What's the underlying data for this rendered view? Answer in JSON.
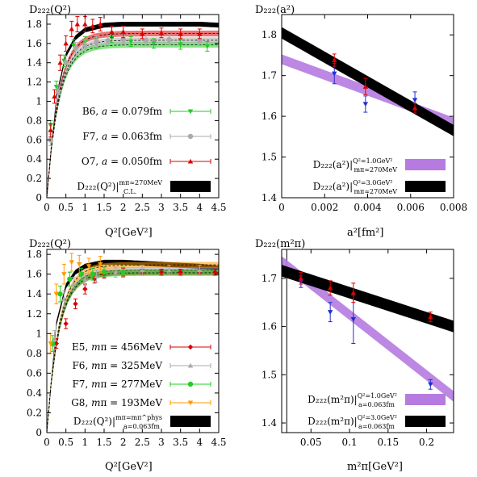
{
  "chart_data": [
    {
      "type": "line",
      "ylabel": "D_222(Q^2)",
      "xlabel": "Q^2[GeV^2]",
      "xlim": [
        0,
        4.5
      ],
      "ylim": [
        0,
        1.9
      ],
      "xticks": [
        "0",
        "0.5",
        "1",
        "1.5",
        "2",
        "2.5",
        "3",
        "3.5",
        "4",
        "4.5"
      ],
      "xtick_values": [
        0,
        0.5,
        1,
        1.5,
        2,
        2.5,
        3,
        3.5,
        4,
        4.5
      ],
      "yticks": [
        "0",
        "0.2",
        "0.4",
        "0.6",
        "0.8",
        "1",
        "1.2",
        "1.4",
        "1.6",
        "1.8"
      ],
      "ytick_values": [
        0,
        0.2,
        0.4,
        0.6,
        0.8,
        1,
        1.2,
        1.4,
        1.6,
        1.8
      ],
      "legend_position": "bottom-right",
      "series": [
        {
          "name": "B6, a = 0.079fm",
          "color": "#22cc22",
          "marker": "triangle-down",
          "x": [
            0.1,
            0.25,
            0.45,
            0.7,
            1.0,
            1.3,
            1.7,
            2.2,
            2.8,
            3.5,
            4.2
          ],
          "y": [
            0.75,
            1.15,
            1.42,
            1.58,
            1.62,
            1.6,
            1.66,
            1.62,
            1.6,
            1.59,
            1.57
          ],
          "err": [
            0.05,
            0.06,
            0.06,
            0.06,
            0.05,
            0.05,
            0.05,
            0.05,
            0.05,
            0.05,
            0.05
          ]
        },
        {
          "name": "F7, a = 0.063fm",
          "color": "#aaaaaa",
          "marker": "circle",
          "x": [
            0.1,
            0.3,
            0.5,
            0.75,
            1.0,
            1.3,
            1.6,
            2.0,
            2.6,
            3.2,
            4.0
          ],
          "y": [
            0.6,
            1.1,
            1.4,
            1.55,
            1.58,
            1.62,
            1.63,
            1.64,
            1.63,
            1.64,
            1.63
          ],
          "err": [
            0.06,
            0.07,
            0.07,
            0.06,
            0.06,
            0.06,
            0.05,
            0.05,
            0.05,
            0.05,
            0.05
          ]
        },
        {
          "name": "O7, a = 0.050fm",
          "color": "#dd0000",
          "marker": "triangle-up",
          "x": [
            0.1,
            0.2,
            0.35,
            0.5,
            0.65,
            0.8,
            1.0,
            1.2,
            1.4,
            1.7,
            2.0,
            2.5,
            3.0,
            3.5,
            4.0
          ],
          "y": [
            0.7,
            1.05,
            1.4,
            1.6,
            1.75,
            1.8,
            1.8,
            1.78,
            1.8,
            1.72,
            1.72,
            1.7,
            1.71,
            1.7,
            1.7
          ],
          "err": [
            0.07,
            0.07,
            0.08,
            0.08,
            0.08,
            0.08,
            0.08,
            0.07,
            0.07,
            0.06,
            0.06,
            0.05,
            0.05,
            0.05,
            0.05
          ]
        },
        {
          "name": "D_222(Q^2)|_{C.L.}^{m_π≈270MeV}",
          "color": "#000000",
          "marker": "band",
          "x": [
            0,
            0.25,
            0.5,
            0.75,
            1,
            1.5,
            2,
            2.5,
            3,
            3.5,
            4,
            4.5
          ],
          "y": [
            0,
            1.05,
            1.48,
            1.66,
            1.74,
            1.79,
            1.8,
            1.8,
            1.8,
            1.8,
            1.8,
            1.79
          ]
        }
      ],
      "legend": [
        {
          "label": "B6, ",
          "italic": "a",
          "rest": " = 0.079fm"
        },
        {
          "label": "F7, ",
          "italic": "a",
          "rest": " = 0.063fm"
        },
        {
          "label": "O7, ",
          "italic": "a",
          "rest": " = 0.050fm"
        },
        {
          "label": "D₂₂₂(Q²)|",
          "sup": "mπ≈270MeV",
          "sub": "C.L."
        }
      ]
    },
    {
      "type": "line",
      "ylabel": "D_222(a^2)",
      "xlabel": "a^2[fm^2]",
      "xlim": [
        0,
        0.008
      ],
      "ylim": [
        1.4,
        1.85
      ],
      "xticks": [
        "0",
        "0.002",
        "0.004",
        "0.006",
        "0.008"
      ],
      "xtick_values": [
        0,
        0.002,
        0.004,
        0.006,
        0.008
      ],
      "yticks": [
        "1.4",
        "1.5",
        "1.6",
        "1.7",
        "1.8"
      ],
      "ytick_values": [
        1.4,
        1.5,
        1.6,
        1.7,
        1.8
      ],
      "legend_position": "bottom-right",
      "series": [
        {
          "name": "D_222(a^2)|^{Q^2=1.0GeV^2}_{m_π≈270MeV}",
          "color": "#b57be0",
          "marker": "band",
          "x": [
            0,
            0.008
          ],
          "y": [
            1.74,
            1.585
          ],
          "halfwidth": 0.012
        },
        {
          "name": "D_222(a^2)|^{Q^2=3.0GeV^2}_{m_π≈270MeV}",
          "color": "#000000",
          "marker": "band",
          "x": [
            0,
            0.008
          ],
          "y": [
            1.805,
            1.565
          ],
          "halfwidth": 0.014
        },
        {
          "name": "points-Q1",
          "color": "#1f2fd0",
          "marker": "triangle-down",
          "x": [
            0.00245,
            0.0039,
            0.0062
          ],
          "y": [
            1.705,
            1.63,
            1.64
          ],
          "err": [
            0.025,
            0.02,
            0.02
          ]
        },
        {
          "name": "points-Q3",
          "color": "#dd0000",
          "marker": "triangle-up",
          "x": [
            0.00245,
            0.0039,
            0.0062
          ],
          "y": [
            1.738,
            1.673,
            1.62
          ],
          "err": [
            0.015,
            0.02,
            0.012
          ]
        }
      ],
      "legend": [
        {
          "label": "D₂₂₂(a²)|",
          "sup": "Q²=1.0GeV²",
          "sub": "mπ≈270MeV"
        },
        {
          "label": "D₂₂₂(a²)|",
          "sup": "Q²=3.0GeV²",
          "sub": "mπ≈270MeV"
        }
      ]
    },
    {
      "type": "line",
      "ylabel": "D_222(Q^2)",
      "xlabel": "Q^2[GeV^2]",
      "xlim": [
        0,
        4.5
      ],
      "ylim": [
        0,
        1.85
      ],
      "xticks": [
        "0",
        "0.5",
        "1",
        "1.5",
        "2",
        "2.5",
        "3",
        "3.5",
        "4",
        "4.5"
      ],
      "xtick_values": [
        0,
        0.5,
        1,
        1.5,
        2,
        2.5,
        3,
        3.5,
        4,
        4.5
      ],
      "yticks": [
        "0",
        "0.2",
        "0.4",
        "0.6",
        "0.8",
        "1",
        "1.2",
        "1.4",
        "1.6",
        "1.8"
      ],
      "ytick_values": [
        0,
        0.2,
        0.4,
        0.6,
        0.8,
        1,
        1.2,
        1.4,
        1.6,
        1.8
      ],
      "legend_position": "bottom-right",
      "series": [
        {
          "name": "E5, m_π = 456MeV",
          "color": "#dd0000",
          "marker": "diamond",
          "x": [
            0.25,
            0.5,
            0.75,
            1.0,
            1.25,
            1.5,
            2.0,
            2.5,
            3.0,
            3.5,
            4.0,
            4.4
          ],
          "y": [
            0.9,
            1.1,
            1.3,
            1.45,
            1.55,
            1.6,
            1.62,
            1.62,
            1.62,
            1.62,
            1.62,
            1.62
          ],
          "err": [
            0.05,
            0.05,
            0.05,
            0.05,
            0.04,
            0.04,
            0.04,
            0.03,
            0.03,
            0.03,
            0.03,
            0.03
          ]
        },
        {
          "name": "F6, m_π = 325MeV",
          "color": "#aaaaaa",
          "marker": "triangle-up",
          "x": [
            0.2,
            0.45,
            0.7,
            1.0,
            1.3,
            1.8,
            2.5,
            3.2,
            4.0
          ],
          "y": [
            0.95,
            1.35,
            1.5,
            1.55,
            1.58,
            1.62,
            1.64,
            1.64,
            1.64
          ],
          "err": [
            0.08,
            0.08,
            0.07,
            0.06,
            0.06,
            0.05,
            0.05,
            0.05,
            0.05
          ]
        },
        {
          "name": "F7, m_π = 277MeV",
          "color": "#22cc22",
          "marker": "circle",
          "x": [
            0.15,
            0.35,
            0.6,
            0.9,
            1.2,
            1.5,
            2.0
          ],
          "y": [
            0.9,
            1.4,
            1.55,
            1.6,
            1.6,
            1.62,
            1.62
          ],
          "err": [
            0.08,
            0.08,
            0.07,
            0.06,
            0.06,
            0.05,
            0.05
          ]
        },
        {
          "name": "G8, m_π = 193MeV",
          "color": "#ff9900",
          "marker": "triangle-down",
          "x": [
            0.1,
            0.25,
            0.45,
            0.65,
            0.85,
            1.1,
            1.4
          ],
          "y": [
            0.9,
            1.4,
            1.6,
            1.72,
            1.7,
            1.68,
            1.7
          ],
          "err": [
            0.1,
            0.1,
            0.1,
            0.09,
            0.09,
            0.08,
            0.08
          ]
        },
        {
          "name": "D_222(Q^2)|^{m_π=m_π^phys}_{a=0.063fm}",
          "color": "#000000",
          "marker": "band",
          "x": [
            0,
            0.25,
            0.5,
            0.75,
            1,
            1.5,
            2,
            2.5,
            3,
            3.5,
            4,
            4.5
          ],
          "y": [
            0,
            1.1,
            1.48,
            1.62,
            1.68,
            1.72,
            1.72,
            1.71,
            1.7,
            1.69,
            1.68,
            1.66
          ]
        }
      ],
      "legend": [
        {
          "label": "E5, ",
          "italic": "m",
          "rest": "π = 456MeV"
        },
        {
          "label": "F6, ",
          "italic": "m",
          "rest": "π = 325MeV"
        },
        {
          "label": "F7, ",
          "italic": "m",
          "rest": "π = 277MeV"
        },
        {
          "label": "G8, ",
          "italic": "m",
          "rest": "π = 193MeV"
        },
        {
          "label": "D₂₂₂(Q²)|",
          "sup": "mπ=mπ^phys",
          "sub": "a=0.063fm"
        }
      ]
    },
    {
      "type": "line",
      "ylabel": "D_222(m_π^2)",
      "xlabel": "m_π^2[GeV^2]",
      "xlim": [
        0.012,
        0.235
      ],
      "ylim": [
        1.38,
        1.76
      ],
      "xticks": [
        "0.05",
        "0.1",
        "0.15",
        "0.2"
      ],
      "xtick_values": [
        0.05,
        0.1,
        0.15,
        0.2
      ],
      "yticks": [
        "1.4",
        "1.5",
        "1.6",
        "1.7"
      ],
      "ytick_values": [
        1.4,
        1.5,
        1.6,
        1.7
      ],
      "physical_point_x": 0.0186,
      "legend_position": "bottom-right",
      "series": [
        {
          "name": "D_222(m_π^2)|^{Q^2=1.0GeV^2}_{a=0.063fm}",
          "color": "#b57be0",
          "marker": "band",
          "x": [
            0.012,
            0.235
          ],
          "y": [
            1.735,
            1.455
          ],
          "halfwidth": 0.011
        },
        {
          "name": "D_222(m_π^2)|^{Q^2=3.0GeV^2}_{a=0.063fm}",
          "color": "#000000",
          "marker": "band",
          "x": [
            0.012,
            0.235
          ],
          "y": [
            1.716,
            1.6
          ],
          "halfwidth": 0.012
        },
        {
          "name": "points-Q1",
          "color": "#1f2fd0",
          "marker": "triangle-down",
          "x": [
            0.037,
            0.075,
            0.105,
            0.205
          ],
          "y": [
            1.693,
            1.63,
            1.615,
            1.48
          ],
          "err": [
            0.012,
            0.02,
            0.05,
            0.01
          ]
        },
        {
          "name": "points-Q3",
          "color": "#dd0000",
          "marker": "triangle-up",
          "x": [
            0.037,
            0.075,
            0.105,
            0.205
          ],
          "y": [
            1.7,
            1.68,
            1.67,
            1.62
          ],
          "err": [
            0.012,
            0.015,
            0.02,
            0.01
          ]
        }
      ],
      "legend": [
        {
          "label": "D₂₂₂(m²π)|",
          "sup": "Q²=1.0GeV²",
          "sub": "a=0.063fm"
        },
        {
          "label": "D₂₂₂(m²π)|",
          "sup": "Q²=3.0GeV²",
          "sub": "a=0.063fm"
        }
      ]
    }
  ],
  "labels": {
    "p1_ylabel": "D₂₂₂(Q²)",
    "p1_xlabel": "Q²[GeV²]",
    "p2_ylabel": "D₂₂₂(a²)",
    "p2_xlabel": "a²[fm²]",
    "p3_ylabel": "D₂₂₂(Q²)",
    "p3_xlabel": "Q²[GeV²]",
    "p4_ylabel": "D₂₂₂(m²π)",
    "p4_xlabel": "m²π[GeV²]"
  }
}
